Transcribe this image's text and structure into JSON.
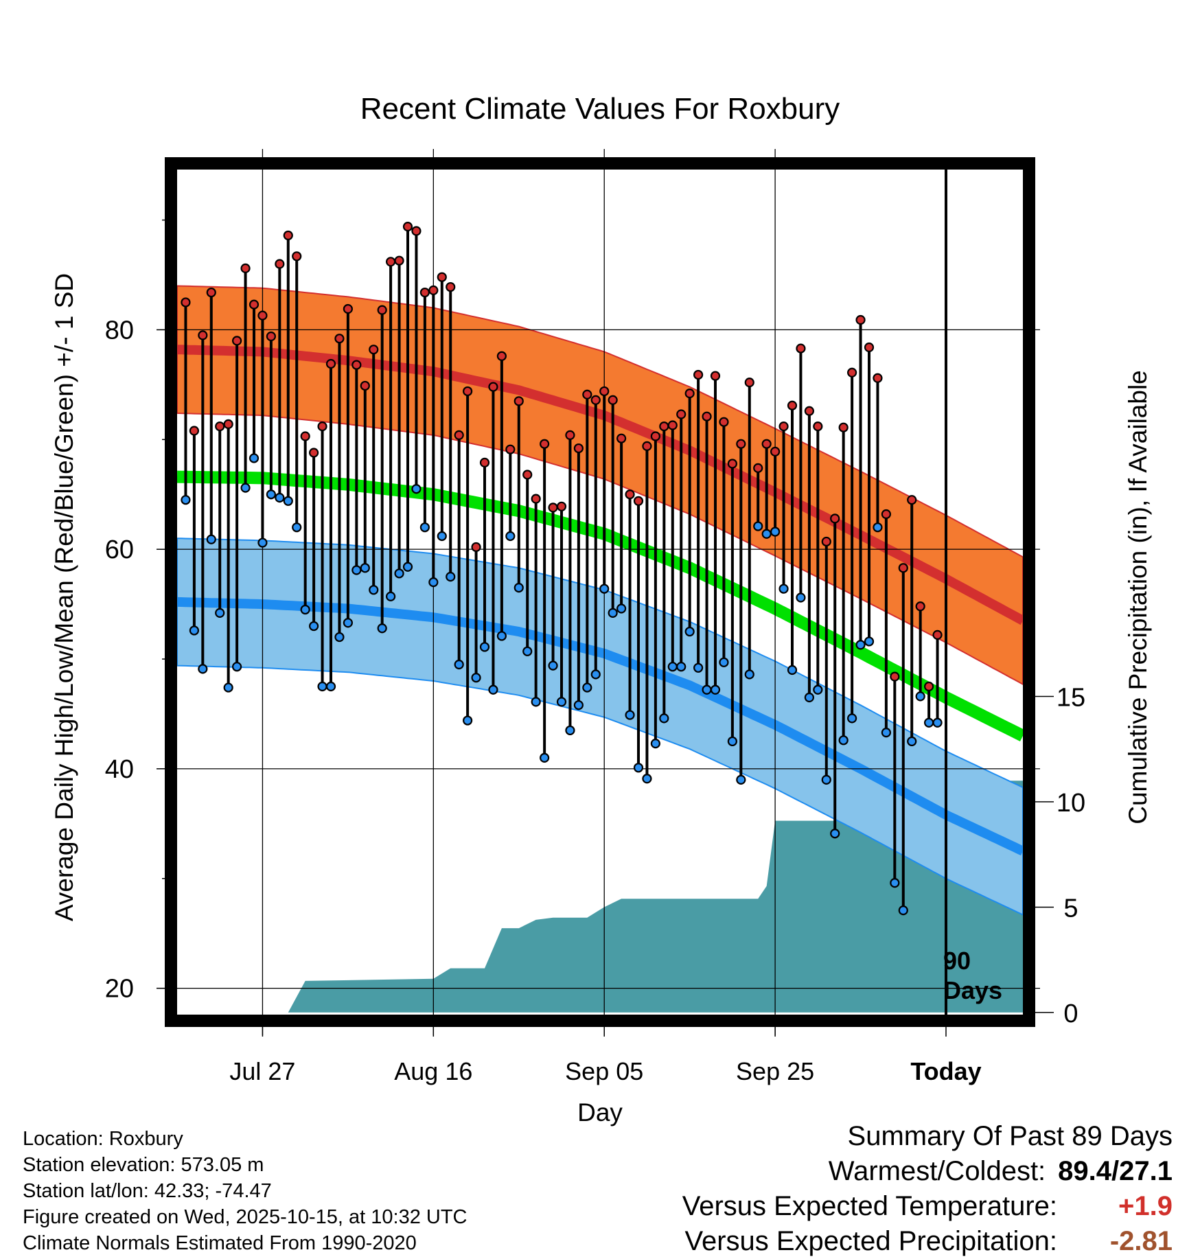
{
  "colors": {
    "high_band": "#f47a30",
    "high_line": "#d32f2f",
    "low_band": "#86c3eb",
    "low_line": "#1e8cf0",
    "mean_line": "#00e000",
    "precip_fill": "#4a9ca5",
    "high_dot": "#d32f2f",
    "low_dot": "#2a8ff0"
  },
  "chart_data": {
    "type": "line",
    "title": "Recent Climate Values For Roxbury",
    "xlabel": "Day",
    "ylabel": "Average Daily High/Low/Mean (Red/Blue/Green) +/- 1 SD",
    "y2label": "Cumulative Precipitation (in), If Available",
    "xlim": [
      -90,
      9
    ],
    "ylim": [
      17.6,
      94.6
    ],
    "y2lim": [
      -0.1,
      40
    ],
    "x_ticks": [
      {
        "x": -80,
        "label": "Jul 27"
      },
      {
        "x": -60,
        "label": "Aug 16"
      },
      {
        "x": -40,
        "label": "Sep 05"
      },
      {
        "x": -20,
        "label": "Sep 25"
      },
      {
        "x": 0,
        "label": "Today"
      }
    ],
    "y_ticks": [
      {
        "v": 20,
        "label": "20"
      },
      {
        "v": 40,
        "label": "40"
      },
      {
        "v": 60,
        "label": "60"
      },
      {
        "v": 80,
        "label": "80"
      }
    ],
    "y_minor_ticks": [
      30,
      50,
      70,
      90
    ],
    "y2_ticks": [
      {
        "v": 0,
        "label": "0"
      },
      {
        "v": 5,
        "label": "5"
      },
      {
        "v": 10,
        "label": "10"
      },
      {
        "v": 15,
        "label": "15"
      }
    ],
    "today_x": 0,
    "today_label": [
      "90",
      "Days"
    ],
    "normal_high": {
      "x": [
        -90,
        -80,
        -70,
        -60,
        -50,
        -40,
        -30,
        -20,
        -10,
        0,
        9
      ],
      "mean": [
        78.2,
        78.0,
        77.2,
        76.2,
        74.5,
        72.2,
        69.0,
        65.2,
        61.3,
        57.3,
        53.5
      ],
      "sd": 5.8
    },
    "normal_low": {
      "x": [
        -90,
        -80,
        -70,
        -60,
        -50,
        -40,
        -30,
        -20,
        -10,
        0,
        9
      ],
      "mean": [
        55.2,
        55.0,
        54.6,
        53.8,
        52.5,
        50.5,
        47.6,
        44.0,
        40.0,
        35.8,
        32.5
      ],
      "sd": 5.8
    },
    "normal_mean": {
      "x": [
        -90,
        -80,
        -70,
        -60,
        -50,
        -40,
        -30,
        -20,
        -10,
        0,
        9
      ],
      "values": [
        66.6,
        66.5,
        65.9,
        65.0,
        63.5,
        61.4,
        58.3,
        54.6,
        50.6,
        46.5,
        43.0
      ]
    },
    "daily": {
      "highs": [
        82.5,
        70.8,
        79.5,
        83.4,
        71.2,
        71.4,
        79.0,
        85.6,
        82.3,
        81.3,
        79.4,
        86.0,
        88.6,
        86.7,
        70.3,
        68.8,
        71.2,
        76.9,
        79.2,
        81.9,
        76.8,
        74.9,
        78.2,
        81.8,
        86.2,
        86.3,
        89.4,
        89.0,
        83.4,
        83.6,
        84.8,
        83.9,
        70.4,
        74.4,
        60.2,
        67.9,
        74.8,
        77.6,
        69.1,
        73.5,
        66.8,
        64.6,
        69.6,
        63.8,
        63.9,
        70.4,
        69.2,
        74.1,
        73.6,
        74.4,
        73.6,
        70.1,
        65.0,
        64.4,
        69.4,
        70.3,
        71.2,
        71.3,
        72.3,
        74.2,
        75.9,
        72.1,
        75.8,
        71.6,
        67.8,
        69.6,
        75.2,
        67.4,
        69.6,
        68.9,
        71.2,
        73.1,
        78.3,
        72.6,
        71.2,
        60.7,
        62.8,
        71.1,
        76.1,
        80.9,
        78.4,
        75.6,
        63.2,
        48.4,
        58.3,
        64.5,
        54.8,
        47.5,
        52.2
      ],
      "lows": [
        64.5,
        52.6,
        49.1,
        60.9,
        54.2,
        47.4,
        49.3,
        65.6,
        68.3,
        60.6,
        65.0,
        64.7,
        64.4,
        62.0,
        54.5,
        53.0,
        47.5,
        47.5,
        52.0,
        53.3,
        58.1,
        58.3,
        56.3,
        52.8,
        55.7,
        57.8,
        58.4,
        65.5,
        62.0,
        57.0,
        61.2,
        57.5,
        49.5,
        44.4,
        48.3,
        51.1,
        47.2,
        52.1,
        61.2,
        56.5,
        50.7,
        46.1,
        41.0,
        49.4,
        46.1,
        43.5,
        45.8,
        47.4,
        48.6,
        56.4,
        54.2,
        54.6,
        44.9,
        40.1,
        39.1,
        42.3,
        44.6,
        49.3,
        49.3,
        52.5,
        49.2,
        47.2,
        47.2,
        49.7,
        42.5,
        39.0,
        48.6,
        62.1,
        61.4,
        61.6,
        56.4,
        49.0,
        55.6,
        46.5,
        47.2,
        39.0,
        34.1,
        42.6,
        44.6,
        51.3,
        51.6,
        62.0,
        43.3,
        29.6,
        27.1,
        42.5,
        46.6,
        44.2,
        44.2
      ]
    },
    "precip": {
      "x": [
        -90,
        -77,
        -75,
        -60,
        -58,
        -54,
        -52,
        -50,
        -48,
        -46,
        -42,
        -40,
        -39,
        -38,
        -22,
        -21,
        -20,
        -19,
        -8,
        -7,
        -5,
        -3,
        -2,
        9
      ],
      "values": [
        0,
        0,
        1.5,
        1.6,
        2.1,
        2.1,
        4.0,
        4.0,
        4.4,
        4.5,
        4.5,
        5.0,
        5.2,
        5.4,
        5.4,
        6.0,
        9.1,
        9.1,
        9.1,
        9.9,
        10.0,
        10.0,
        11.0,
        11.0
      ]
    }
  },
  "info": {
    "location": "Location: Roxbury",
    "elevation": "Station elevation: 573.05 m",
    "latlon": "Station lat/lon: 42.33; -74.47",
    "created": "Figure created on Wed, 2025-10-15, at 10:32 UTC",
    "normals": "Climate Normals Estimated From 1990-2020"
  },
  "summary": {
    "heading": "Summary Of Past 89 Days",
    "warmest_coldest_label": "Warmest/Coldest:",
    "warmest_coldest_value": "89.4/27.1",
    "temp_label": "Versus Expected Temperature:",
    "temp_value": "+1.9",
    "precip_label": "Versus Expected Precipitation:",
    "precip_value": "-2.81"
  }
}
